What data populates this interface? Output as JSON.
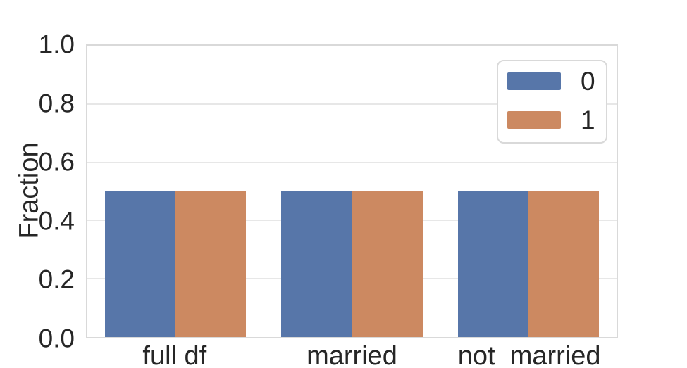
{
  "figure": {
    "background": "#ffffff",
    "text_color": "#262626",
    "grid_color": "#e7e7e7",
    "spine_color": "#d9d9d9"
  },
  "y_axis": {
    "label": "Fraction",
    "tick_labels": [
      "0.0",
      "0.2",
      "0.4",
      "0.6",
      "0.8",
      "1.0"
    ]
  },
  "x_axis": {
    "tick_labels": [
      "full df",
      "married",
      "not_married"
    ]
  },
  "legend": {
    "entries": [
      {
        "label": "0",
        "color": "#5776a9"
      },
      {
        "label": "1",
        "color": "#cc8961"
      }
    ]
  },
  "chart_data": {
    "type": "bar",
    "categories": [
      "full df",
      "married",
      "not_married"
    ],
    "series": [
      {
        "name": "0",
        "color": "#5776a9",
        "values": [
          0.5,
          0.5,
          0.5
        ]
      },
      {
        "name": "1",
        "color": "#cc8961",
        "values": [
          0.5,
          0.5,
          0.5
        ]
      }
    ],
    "title": "",
    "xlabel": "",
    "ylabel": "Fraction",
    "ylim": [
      0,
      1
    ],
    "yticks": [
      0.0,
      0.2,
      0.4,
      0.6,
      0.8,
      1.0
    ],
    "grid": "horizontal",
    "legend_position": "upper right"
  }
}
